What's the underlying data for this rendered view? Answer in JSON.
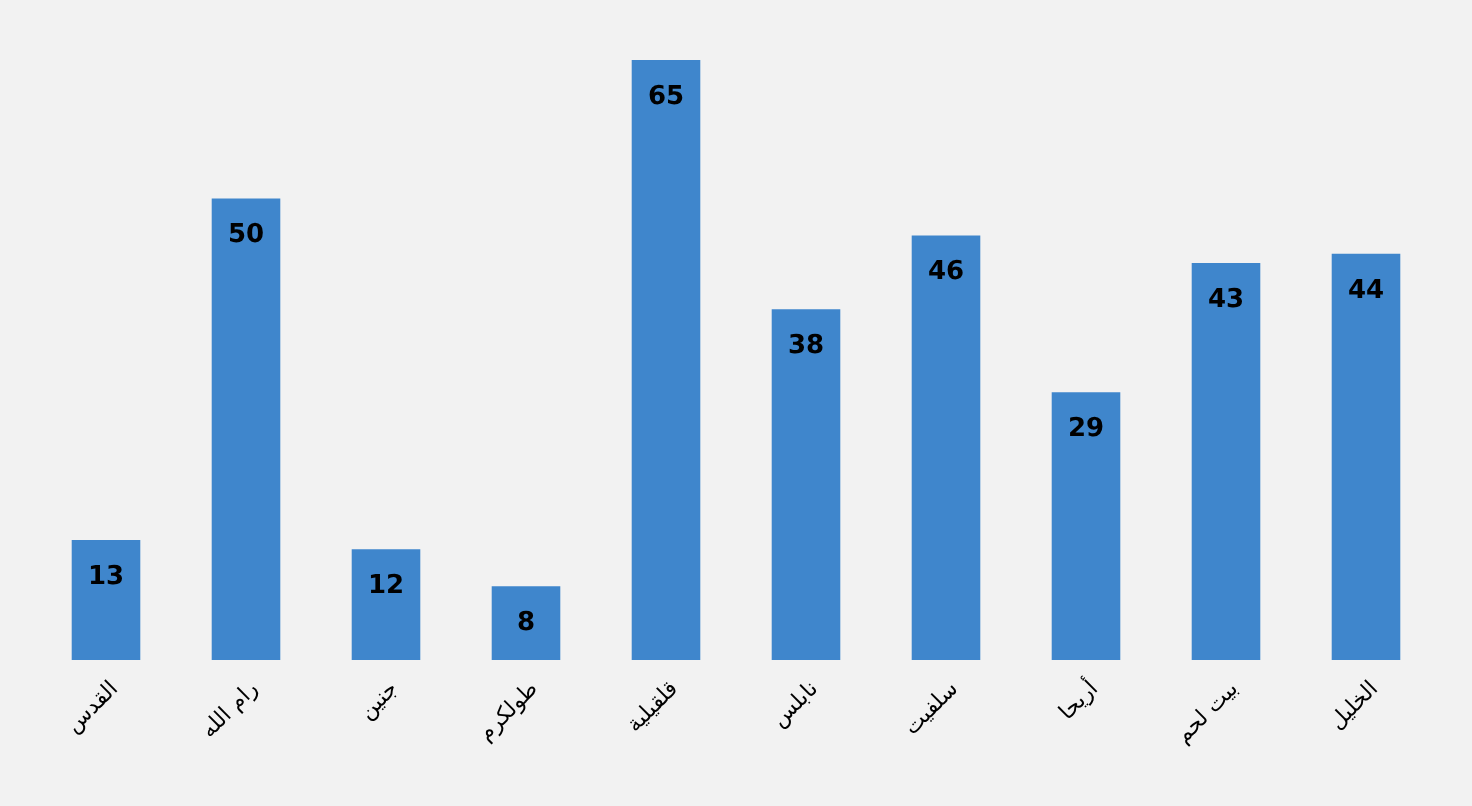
{
  "chart_data": {
    "type": "bar",
    "categories": [
      "القدس",
      "رام الله",
      "جنين",
      "طولكرم",
      "قلقيلية",
      "نابلس",
      "سلفيت",
      "أريحا",
      "بيت لحم",
      "الخليل"
    ],
    "values": [
      13,
      50,
      12,
      8,
      65,
      38,
      46,
      29,
      43,
      44
    ],
    "color": "#3f86cc",
    "data_labels": true
  }
}
